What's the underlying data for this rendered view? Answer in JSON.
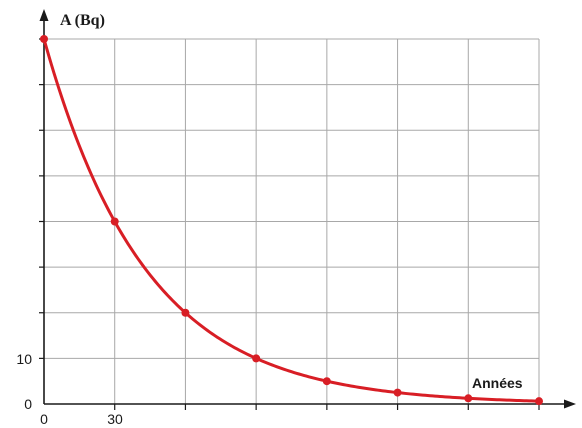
{
  "chart_data": {
    "type": "line",
    "ylabel": "A (Bq)",
    "xlabel": "Années",
    "x_tick_labels": {
      "first": "0",
      "second": "30"
    },
    "y_tick_labels": {
      "first": "0",
      "second": "10"
    },
    "xlim": [
      0,
      210
    ],
    "ylim": [
      0,
      80
    ],
    "x_tick_step": 30,
    "y_tick_step": 10,
    "grid": true,
    "line_color": "#d81e25",
    "series": [
      {
        "x": [
          0,
          30,
          60,
          90,
          120,
          150,
          180,
          210
        ],
        "values": [
          80,
          40,
          20,
          10,
          5,
          2.5,
          1.25,
          0.625
        ]
      }
    ]
  }
}
